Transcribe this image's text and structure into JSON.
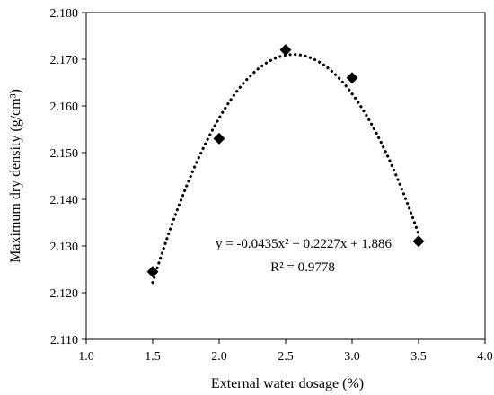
{
  "chart_data": {
    "type": "scatter",
    "xlabel": "External water dosage (%)",
    "ylabel": "Maximum dry density (g/cm³)",
    "xlim": [
      1.0,
      4.0
    ],
    "ylim": [
      2.11,
      2.18
    ],
    "xticks": [
      "1.0",
      "1.5",
      "2.0",
      "2.5",
      "3.0",
      "3.5",
      "4.0"
    ],
    "yticks": [
      "2.110",
      "2.120",
      "2.130",
      "2.140",
      "2.150",
      "2.160",
      "2.170",
      "2.180"
    ],
    "grid": false,
    "legend": "none",
    "series": [
      {
        "marker": "diamond",
        "color": "#000000",
        "x": [
          1.5,
          2.0,
          2.5,
          3.0,
          3.5
        ],
        "y": [
          2.1245,
          2.153,
          2.172,
          2.166,
          2.131
        ]
      }
    ],
    "trendline": {
      "type": "polynomial",
      "style": "dotted",
      "coefficients": {
        "a": -0.0435,
        "b": 0.2227,
        "c": 1.886
      },
      "x_range": [
        1.5,
        3.5
      ]
    },
    "annotations": {
      "equation": "y = -0.0435x² + 0.2227x + 1.886",
      "r_squared": "R² = 0.9778"
    }
  }
}
